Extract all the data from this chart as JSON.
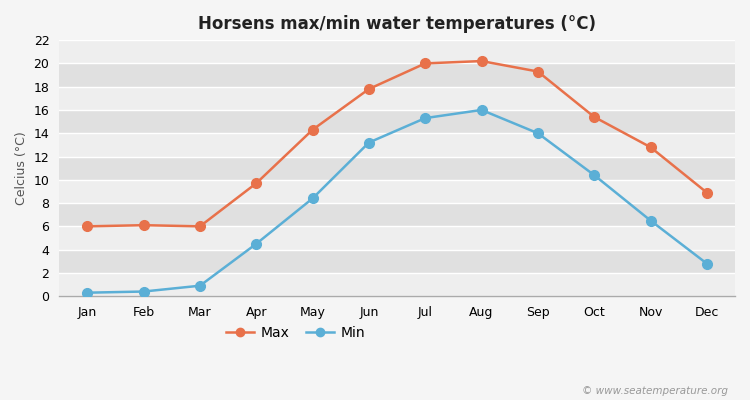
{
  "title": "Horsens max/min water temperatures (°C)",
  "ylabel": "Celcius (°C)",
  "months": [
    "Jan",
    "Feb",
    "Mar",
    "Apr",
    "May",
    "Jun",
    "Jul",
    "Aug",
    "Sep",
    "Oct",
    "Nov",
    "Dec"
  ],
  "max_values": [
    6.0,
    6.1,
    6.0,
    9.7,
    14.3,
    17.8,
    20.0,
    20.2,
    19.3,
    15.4,
    12.8,
    8.9
  ],
  "min_values": [
    0.3,
    0.4,
    0.9,
    4.5,
    8.4,
    13.2,
    15.3,
    16.0,
    14.0,
    10.4,
    6.5,
    2.8
  ],
  "max_color": "#e8714a",
  "min_color": "#5bafd6",
  "fig_bg_color": "#f5f5f5",
  "plot_bg_color": "#e8e8e8",
  "band_color_light": "#eeeeee",
  "band_color_dark": "#e0e0e0",
  "ylim": [
    0,
    22
  ],
  "yticks": [
    0,
    2,
    4,
    6,
    8,
    10,
    12,
    14,
    16,
    18,
    20,
    22
  ],
  "grid_color": "#ffffff",
  "watermark": "© www.seatemperature.org",
  "legend_labels": [
    "Max",
    "Min"
  ],
  "marker_style": "o",
  "linewidth": 1.8,
  "markersize": 7,
  "title_fontsize": 12,
  "axis_fontsize": 9,
  "legend_fontsize": 10
}
